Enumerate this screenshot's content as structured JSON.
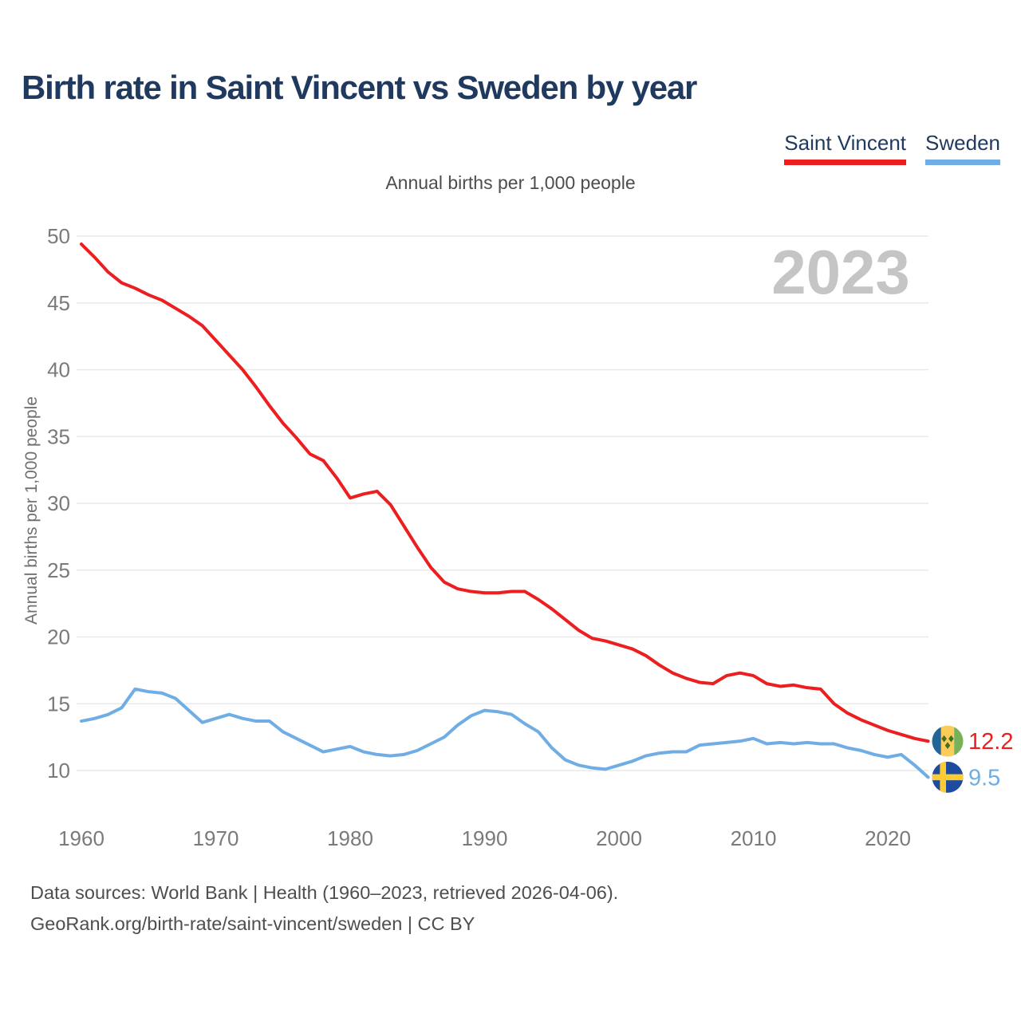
{
  "header": {
    "title": "Birth rate in Saint Vincent vs Sweden by year"
  },
  "legend": [
    {
      "label": "Saint Vincent",
      "color": "#ed1e1f"
    },
    {
      "label": "Sweden",
      "color": "#70ade4"
    }
  ],
  "subtitle": "Annual births per 1,000 people",
  "watermark": "2023",
  "footer": {
    "line1": "Data sources: World Bank | Health (1960–2023, retrieved 2026-04-06).",
    "line2": "GeoRank.org/birth-rate/saint-vincent/sweden | CC BY"
  },
  "chart_data": {
    "type": "line",
    "title": "Birth rate in Saint Vincent vs Sweden by year",
    "ylabel": "Annual births per 1,000 people",
    "xlabel": "",
    "grid": true,
    "legend_position": "top-right",
    "ylim": [
      8,
      51
    ],
    "xlim": [
      1960,
      2023
    ],
    "yticks": [
      10,
      15,
      20,
      25,
      30,
      35,
      40,
      45,
      50
    ],
    "xticks": [
      1960,
      1970,
      1980,
      1990,
      2000,
      2010,
      2020
    ],
    "x": [
      1960,
      1961,
      1962,
      1963,
      1964,
      1965,
      1966,
      1967,
      1968,
      1969,
      1970,
      1971,
      1972,
      1973,
      1974,
      1975,
      1976,
      1977,
      1978,
      1979,
      1980,
      1981,
      1982,
      1983,
      1984,
      1985,
      1986,
      1987,
      1988,
      1989,
      1990,
      1991,
      1992,
      1993,
      1994,
      1995,
      1996,
      1997,
      1998,
      1999,
      2000,
      2001,
      2002,
      2003,
      2004,
      2005,
      2006,
      2007,
      2008,
      2009,
      2010,
      2011,
      2012,
      2013,
      2014,
      2015,
      2016,
      2017,
      2018,
      2019,
      2020,
      2021,
      2022,
      2023
    ],
    "series": [
      {
        "name": "Saint Vincent",
        "color": "#ed1e1f",
        "flag": "saint-vincent",
        "end_label": "12.2",
        "values": [
          49.4,
          48.4,
          47.3,
          46.5,
          46.1,
          45.6,
          45.2,
          44.6,
          44.0,
          43.3,
          42.2,
          41.1,
          40.0,
          38.7,
          37.3,
          36.0,
          34.9,
          33.7,
          33.2,
          31.9,
          30.4,
          30.7,
          30.9,
          29.9,
          28.3,
          26.7,
          25.2,
          24.1,
          23.6,
          23.4,
          23.3,
          23.3,
          23.4,
          23.4,
          22.8,
          22.1,
          21.3,
          20.5,
          19.9,
          19.7,
          19.4,
          19.1,
          18.6,
          17.9,
          17.3,
          16.9,
          16.6,
          16.5,
          17.1,
          17.3,
          17.1,
          16.5,
          16.3,
          16.4,
          16.2,
          16.1,
          15.0,
          14.3,
          13.8,
          13.4,
          13.0,
          12.7,
          12.4,
          12.2
        ]
      },
      {
        "name": "Sweden",
        "color": "#70ade4",
        "flag": "sweden",
        "end_label": "9.5",
        "values": [
          13.7,
          13.9,
          14.2,
          14.7,
          16.1,
          15.9,
          15.8,
          15.4,
          14.5,
          13.6,
          13.9,
          14.2,
          13.9,
          13.7,
          13.7,
          12.9,
          12.4,
          11.9,
          11.4,
          11.6,
          11.8,
          11.4,
          11.2,
          11.1,
          11.2,
          11.5,
          12.0,
          12.5,
          13.4,
          14.1,
          14.5,
          14.4,
          14.2,
          13.5,
          12.9,
          11.7,
          10.8,
          10.4,
          10.2,
          10.1,
          10.4,
          10.7,
          11.1,
          11.3,
          11.4,
          11.4,
          11.9,
          12.0,
          12.1,
          12.2,
          12.4,
          12.0,
          12.1,
          12.0,
          12.1,
          12.0,
          12.0,
          11.7,
          11.5,
          11.2,
          11.0,
          11.2,
          10.4,
          9.5
        ]
      }
    ]
  }
}
